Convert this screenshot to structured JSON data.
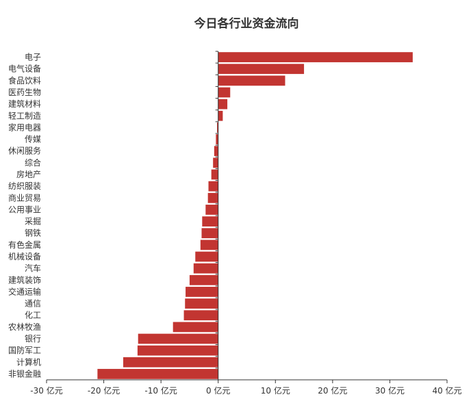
{
  "chart_data": {
    "type": "bar",
    "orientation": "horizontal",
    "title": "今日各行业资金流向",
    "xlabel": "",
    "ylabel": "",
    "unit": "亿元",
    "xlim": [
      -30,
      40
    ],
    "x_ticks": [
      -30,
      -20,
      -10,
      0,
      10,
      20,
      30,
      40
    ],
    "x_tick_labels": [
      "-30 亿元",
      "-20 亿元",
      "-10 亿元",
      "0 亿元",
      "10 亿元",
      "20 亿元",
      "30 亿元",
      "40 亿元"
    ],
    "grid": false,
    "legend": "none",
    "bar_color": "#c23531",
    "categories": [
      "电子",
      "电气设备",
      "食品饮料",
      "医药生物",
      "建筑材料",
      "轻工制造",
      "家用电器",
      "传媒",
      "休闲服务",
      "综合",
      "房地产",
      "纺织服装",
      "商业贸易",
      "公用事业",
      "采掘",
      "钢铁",
      "有色金属",
      "机械设备",
      "汽车",
      "建筑装饰",
      "交通运输",
      "通信",
      "化工",
      "农林牧渔",
      "银行",
      "国防军工",
      "计算机",
      "非银金融"
    ],
    "values": [
      34.0,
      15.0,
      11.7,
      2.1,
      1.6,
      0.8,
      -0.2,
      -0.4,
      -0.7,
      -0.9,
      -1.2,
      -1.7,
      -1.8,
      -2.2,
      -2.8,
      -2.9,
      -3.1,
      -4.0,
      -4.3,
      -5.0,
      -5.7,
      -5.8,
      -6.0,
      -7.9,
      -14.0,
      -14.1,
      -16.6,
      -21.1
    ]
  }
}
